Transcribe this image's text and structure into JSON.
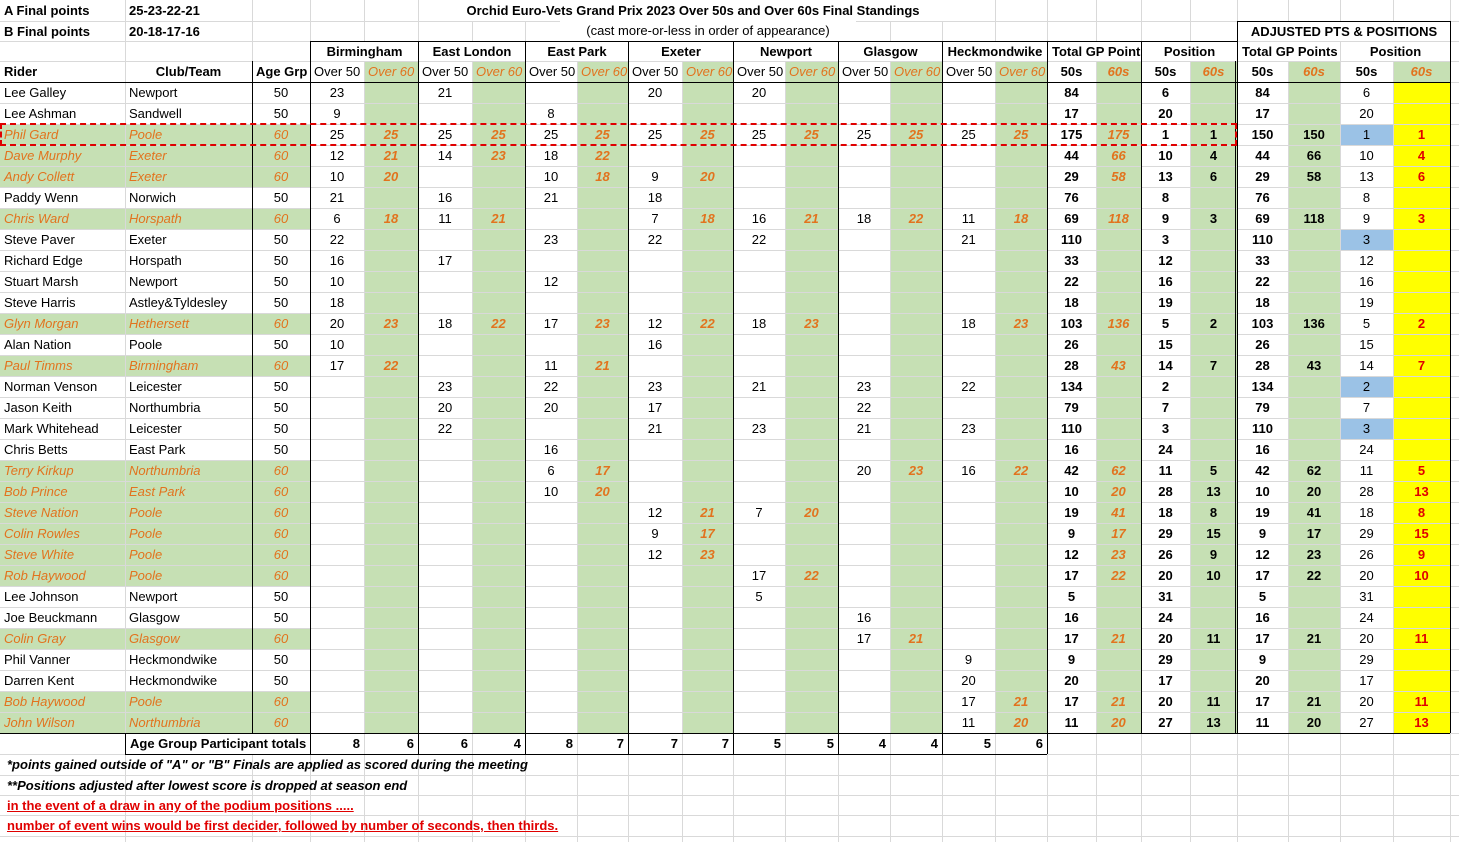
{
  "header": {
    "a_label": "A Final points",
    "a_value": "25-23-22-21",
    "b_label": "B Final points",
    "b_value": "20-18-17-16",
    "title": "Orchid Euro-Vets Grand Prix 2023 Over 50s and Over 60s Final Standings",
    "subtitle": "(cast more-or-less in order of appearance)",
    "adjusted_title": "ADJUSTED PTS & POSITIONS"
  },
  "table": {
    "venues": [
      "Birmingham",
      "East London",
      "East Park",
      "Exeter",
      "Newport",
      "Glasgow",
      "Heckmondwike"
    ],
    "group_headers": [
      "Total GP Points",
      "Position",
      "Total GP Points",
      "Position"
    ],
    "columns": [
      "Rider",
      "Club/Team",
      "Age Grp"
    ],
    "sub_headers": [
      "Over 50",
      "Over 60"
    ],
    "age_headers": [
      "50s",
      "60s"
    ],
    "rows": [
      [
        "Lee Galley",
        "Newport",
        50,
        23,
        null,
        21,
        null,
        null,
        null,
        20,
        null,
        20,
        null,
        null,
        null,
        null,
        null,
        84,
        null,
        6,
        null,
        84,
        null,
        6,
        null
      ],
      [
        "Lee Ashman",
        "Sandwell",
        50,
        9,
        null,
        null,
        null,
        8,
        null,
        null,
        null,
        null,
        null,
        null,
        null,
        null,
        null,
        17,
        null,
        20,
        null,
        17,
        null,
        20,
        null
      ],
      [
        "Phil Gard",
        "Poole",
        60,
        25,
        25,
        25,
        25,
        25,
        25,
        25,
        25,
        25,
        25,
        25,
        25,
        25,
        25,
        175,
        175,
        1,
        1,
        150,
        150,
        1,
        1
      ],
      [
        "Dave Murphy",
        "Exeter",
        60,
        12,
        21,
        14,
        23,
        18,
        22,
        null,
        null,
        null,
        null,
        null,
        null,
        null,
        null,
        44,
        66,
        10,
        4,
        44,
        66,
        10,
        4
      ],
      [
        "Andy Collett",
        "Exeter",
        60,
        10,
        20,
        null,
        null,
        10,
        18,
        9,
        20,
        null,
        null,
        null,
        null,
        null,
        null,
        29,
        58,
        13,
        6,
        29,
        58,
        13,
        6
      ],
      [
        "Paddy Wenn",
        "Norwich",
        50,
        21,
        null,
        16,
        null,
        21,
        null,
        18,
        null,
        null,
        null,
        null,
        null,
        null,
        null,
        76,
        null,
        8,
        null,
        76,
        null,
        8,
        null
      ],
      [
        "Chris Ward",
        "Horspath",
        60,
        6,
        18,
        11,
        21,
        null,
        null,
        7,
        18,
        16,
        21,
        18,
        22,
        11,
        18,
        69,
        118,
        9,
        3,
        69,
        118,
        9,
        3
      ],
      [
        "Steve Paver",
        "Exeter",
        50,
        22,
        null,
        null,
        null,
        23,
        null,
        22,
        null,
        22,
        null,
        null,
        null,
        21,
        null,
        110,
        null,
        3,
        null,
        110,
        null,
        3,
        null
      ],
      [
        "Richard Edge",
        "Horspath",
        50,
        16,
        null,
        17,
        null,
        null,
        null,
        null,
        null,
        null,
        null,
        null,
        null,
        null,
        null,
        33,
        null,
        12,
        null,
        33,
        null,
        12,
        null
      ],
      [
        "Stuart Marsh",
        "Newport",
        50,
        10,
        null,
        null,
        null,
        12,
        null,
        null,
        null,
        null,
        null,
        null,
        null,
        null,
        null,
        22,
        null,
        16,
        null,
        22,
        null,
        16,
        null
      ],
      [
        "Steve Harris",
        "Astley&Tyldesley",
        50,
        18,
        null,
        null,
        null,
        null,
        null,
        null,
        null,
        null,
        null,
        null,
        null,
        null,
        null,
        18,
        null,
        19,
        null,
        18,
        null,
        19,
        null
      ],
      [
        "Glyn Morgan",
        "Hethersett",
        60,
        20,
        23,
        18,
        22,
        17,
        23,
        12,
        22,
        18,
        23,
        null,
        null,
        18,
        23,
        103,
        136,
        5,
        2,
        103,
        136,
        5,
        2
      ],
      [
        "Alan Nation",
        "Poole",
        50,
        10,
        null,
        null,
        null,
        null,
        null,
        16,
        null,
        null,
        null,
        null,
        null,
        null,
        null,
        26,
        null,
        15,
        null,
        26,
        null,
        15,
        null
      ],
      [
        "Paul Timms",
        "Birmingham",
        60,
        17,
        22,
        null,
        null,
        11,
        21,
        null,
        null,
        null,
        null,
        null,
        null,
        null,
        null,
        28,
        43,
        14,
        7,
        28,
        43,
        14,
        7
      ],
      [
        "Norman Venson",
        "Leicester",
        50,
        null,
        null,
        23,
        null,
        22,
        null,
        23,
        null,
        21,
        null,
        23,
        null,
        22,
        null,
        134,
        null,
        2,
        null,
        134,
        null,
        2,
        null
      ],
      [
        "Jason Keith",
        "Northumbria",
        50,
        null,
        null,
        20,
        null,
        20,
        null,
        17,
        null,
        null,
        null,
        22,
        null,
        null,
        null,
        79,
        null,
        7,
        null,
        79,
        null,
        7,
        null
      ],
      [
        "Mark Whitehead",
        "Leicester",
        50,
        null,
        null,
        22,
        null,
        null,
        null,
        21,
        null,
        23,
        null,
        21,
        null,
        23,
        null,
        110,
        null,
        3,
        null,
        110,
        null,
        3,
        null
      ],
      [
        "Chris Betts",
        "East Park",
        50,
        null,
        null,
        null,
        null,
        16,
        null,
        null,
        null,
        null,
        null,
        null,
        null,
        null,
        null,
        16,
        null,
        24,
        null,
        16,
        null,
        24,
        null
      ],
      [
        "Terry Kirkup",
        "Northumbria",
        60,
        null,
        null,
        null,
        null,
        6,
        17,
        null,
        null,
        null,
        null,
        20,
        23,
        16,
        22,
        42,
        62,
        11,
        5,
        42,
        62,
        11,
        5
      ],
      [
        "Bob Prince",
        "East Park",
        60,
        null,
        null,
        null,
        null,
        10,
        20,
        null,
        null,
        null,
        null,
        null,
        null,
        null,
        null,
        10,
        20,
        28,
        13,
        10,
        20,
        28,
        13
      ],
      [
        "Steve Nation",
        "Poole",
        60,
        null,
        null,
        null,
        null,
        null,
        null,
        12,
        21,
        7,
        20,
        null,
        null,
        null,
        null,
        19,
        41,
        18,
        8,
        19,
        41,
        18,
        8
      ],
      [
        "Colin Rowles",
        "Poole",
        60,
        null,
        null,
        null,
        null,
        null,
        null,
        9,
        17,
        null,
        null,
        null,
        null,
        null,
        null,
        9,
        17,
        29,
        15,
        9,
        17,
        29,
        15
      ],
      [
        "Steve White",
        "Poole",
        60,
        null,
        null,
        null,
        null,
        null,
        null,
        12,
        23,
        null,
        null,
        null,
        null,
        null,
        null,
        12,
        23,
        26,
        9,
        12,
        23,
        26,
        9
      ],
      [
        "Rob Haywood",
        "Poole",
        60,
        null,
        null,
        null,
        null,
        null,
        null,
        null,
        null,
        17,
        22,
        null,
        null,
        null,
        null,
        17,
        22,
        20,
        10,
        17,
        22,
        20,
        10
      ],
      [
        "Lee Johnson",
        "Newport",
        50,
        null,
        null,
        null,
        null,
        null,
        null,
        null,
        null,
        5,
        null,
        null,
        null,
        null,
        null,
        5,
        null,
        31,
        null,
        5,
        null,
        31,
        null
      ],
      [
        "Joe Beuckmann",
        "Glasgow",
        50,
        null,
        null,
        null,
        null,
        null,
        null,
        null,
        null,
        null,
        null,
        16,
        null,
        null,
        null,
        16,
        null,
        24,
        null,
        16,
        null,
        24,
        null
      ],
      [
        "Colin Gray",
        "Glasgow",
        60,
        null,
        null,
        null,
        null,
        null,
        null,
        null,
        null,
        null,
        null,
        17,
        21,
        null,
        null,
        17,
        21,
        20,
        11,
        17,
        21,
        20,
        11
      ],
      [
        "Phil Vanner",
        "Heckmondwike",
        50,
        null,
        null,
        null,
        null,
        null,
        null,
        null,
        null,
        null,
        null,
        null,
        null,
        9,
        null,
        9,
        null,
        29,
        null,
        9,
        null,
        29,
        null
      ],
      [
        "Darren Kent",
        "Heckmondwike",
        50,
        null,
        null,
        null,
        null,
        null,
        null,
        null,
        null,
        null,
        null,
        null,
        null,
        20,
        null,
        20,
        null,
        17,
        null,
        20,
        null,
        17,
        null
      ],
      [
        "Bob Haywood",
        "Poole",
        60,
        null,
        null,
        null,
        null,
        null,
        null,
        null,
        null,
        null,
        null,
        null,
        null,
        17,
        21,
        17,
        21,
        20,
        11,
        17,
        21,
        20,
        11
      ],
      [
        "John Wilson",
        "Northumbria",
        60,
        null,
        null,
        null,
        null,
        null,
        null,
        null,
        null,
        null,
        null,
        null,
        null,
        11,
        20,
        11,
        20,
        27,
        13,
        11,
        20,
        27,
        13
      ]
    ],
    "totals_label": "Age Group Participant totals",
    "totals": [
      8,
      6,
      6,
      4,
      8,
      7,
      7,
      7,
      5,
      5,
      4,
      4,
      5,
      6
    ]
  },
  "notes": [
    "*points gained outside of \"A\" or \"B\" Finals are applied as scored during the meeting",
    "**Positions adjusted after lowest score is dropped at season end",
    "in the event of a draw in any of the podium positions .....",
    "number of event wins would be first decider, followed by number of seconds, then thirds."
  ]
}
